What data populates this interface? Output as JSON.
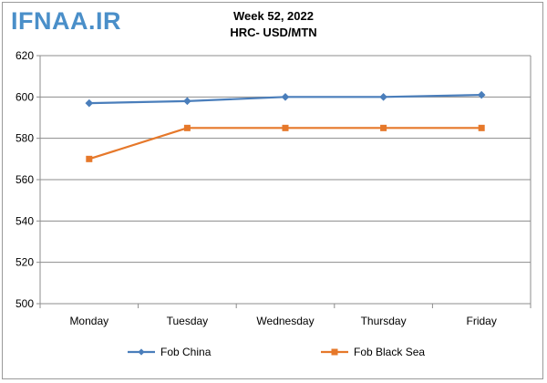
{
  "watermark": "IFNAA.IR",
  "chart_data": {
    "type": "line",
    "title": "Week 52, 2022",
    "subtitle": "HRC- USD/MTN",
    "categories": [
      "Monday",
      "Tuesday",
      "Wednesday",
      "Thursday",
      "Friday"
    ],
    "ylim": [
      500,
      620
    ],
    "yticks": [
      500,
      520,
      540,
      560,
      580,
      600,
      620
    ],
    "grid": true,
    "legend_position": "bottom",
    "series": [
      {
        "name": "Fob China",
        "color": "#4a7ebb",
        "marker": "diamond",
        "values": [
          597,
          598,
          600,
          600,
          601
        ]
      },
      {
        "name": "Fob Black Sea",
        "color": "#e6782a",
        "marker": "square",
        "values": [
          570,
          585,
          585,
          585,
          585
        ]
      }
    ]
  }
}
